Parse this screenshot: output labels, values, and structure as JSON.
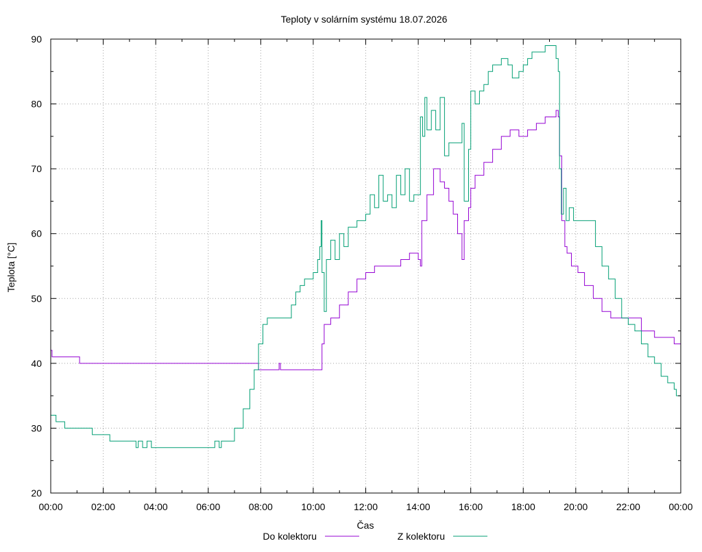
{
  "chart_data": {
    "type": "line",
    "title": "Teploty v solárním systému 18.07.2026",
    "xlabel": "Čas",
    "ylabel": "Teplota [°C]",
    "xlim": [
      "00:00",
      "24:00"
    ],
    "ylim": [
      20,
      90
    ],
    "x_ticks": [
      "00:00",
      "02:00",
      "04:00",
      "06:00",
      "08:00",
      "10:00",
      "12:00",
      "14:00",
      "16:00",
      "18:00",
      "20:00",
      "22:00",
      "00:00"
    ],
    "y_ticks": [
      20,
      30,
      40,
      50,
      60,
      70,
      80,
      90
    ],
    "grid": true,
    "legend_position": "bottom-center",
    "series": [
      {
        "name": "Do kolektoru",
        "color": "#9400d3",
        "points": [
          [
            "00:00",
            42
          ],
          [
            "00:03",
            41
          ],
          [
            "01:00",
            41
          ],
          [
            "01:06",
            40
          ],
          [
            "07:50",
            40
          ],
          [
            "07:55",
            39
          ],
          [
            "08:40",
            39
          ],
          [
            "08:42",
            40
          ],
          [
            "08:45",
            39
          ],
          [
            "10:15",
            39
          ],
          [
            "10:20",
            43
          ],
          [
            "10:25",
            46
          ],
          [
            "10:40",
            47
          ],
          [
            "11:00",
            49
          ],
          [
            "11:20",
            51
          ],
          [
            "11:40",
            53
          ],
          [
            "12:00",
            54
          ],
          [
            "12:20",
            55
          ],
          [
            "13:00",
            55
          ],
          [
            "13:20",
            56
          ],
          [
            "13:40",
            57
          ],
          [
            "14:00",
            56
          ],
          [
            "14:05",
            55
          ],
          [
            "14:08",
            62
          ],
          [
            "14:20",
            66
          ],
          [
            "14:35",
            70
          ],
          [
            "14:45",
            70
          ],
          [
            "14:50",
            68
          ],
          [
            "15:00",
            67
          ],
          [
            "15:10",
            65
          ],
          [
            "15:20",
            63
          ],
          [
            "15:30",
            60
          ],
          [
            "15:40",
            56
          ],
          [
            "15:45",
            62
          ],
          [
            "15:55",
            64
          ],
          [
            "16:00",
            67
          ],
          [
            "16:10",
            69
          ],
          [
            "16:30",
            71
          ],
          [
            "16:50",
            73
          ],
          [
            "17:10",
            75
          ],
          [
            "17:30",
            76
          ],
          [
            "17:50",
            75
          ],
          [
            "18:10",
            76
          ],
          [
            "18:30",
            77
          ],
          [
            "18:50",
            78
          ],
          [
            "19:15",
            79
          ],
          [
            "19:20",
            78
          ],
          [
            "19:23",
            72
          ],
          [
            "19:28",
            62
          ],
          [
            "19:35",
            58
          ],
          [
            "19:40",
            57
          ],
          [
            "19:50",
            55
          ],
          [
            "20:05",
            54
          ],
          [
            "20:20",
            52
          ],
          [
            "20:40",
            50
          ],
          [
            "21:00",
            48
          ],
          [
            "21:20",
            47
          ],
          [
            "22:00",
            47
          ],
          [
            "22:30",
            45
          ],
          [
            "23:00",
            44
          ],
          [
            "23:40",
            44
          ],
          [
            "23:45",
            43
          ],
          [
            "24:00",
            43
          ]
        ]
      },
      {
        "name": "Z kolektoru",
        "color": "#009e73",
        "points": [
          [
            "00:00",
            32
          ],
          [
            "00:10",
            32
          ],
          [
            "00:12",
            31
          ],
          [
            "00:30",
            31
          ],
          [
            "00:32",
            30
          ],
          [
            "01:30",
            30
          ],
          [
            "01:35",
            29
          ],
          [
            "02:10",
            29
          ],
          [
            "02:15",
            28
          ],
          [
            "03:10",
            28
          ],
          [
            "03:15",
            27
          ],
          [
            "03:20",
            28
          ],
          [
            "03:30",
            27
          ],
          [
            "03:40",
            28
          ],
          [
            "03:50",
            27
          ],
          [
            "04:00",
            27
          ],
          [
            "06:10",
            27
          ],
          [
            "06:15",
            28
          ],
          [
            "06:25",
            27
          ],
          [
            "06:30",
            28
          ],
          [
            "06:45",
            28
          ],
          [
            "07:00",
            30
          ],
          [
            "07:20",
            33
          ],
          [
            "07:35",
            36
          ],
          [
            "07:45",
            39
          ],
          [
            "07:55",
            43
          ],
          [
            "08:05",
            46
          ],
          [
            "08:15",
            47
          ],
          [
            "09:00",
            47
          ],
          [
            "09:10",
            49
          ],
          [
            "09:20",
            51
          ],
          [
            "09:30",
            52
          ],
          [
            "09:40",
            53
          ],
          [
            "09:50",
            53
          ],
          [
            "10:00",
            54
          ],
          [
            "10:10",
            56
          ],
          [
            "10:15",
            58
          ],
          [
            "10:18",
            62
          ],
          [
            "10:20",
            54
          ],
          [
            "10:25",
            48
          ],
          [
            "10:30",
            56
          ],
          [
            "10:40",
            59
          ],
          [
            "10:50",
            56
          ],
          [
            "11:00",
            60
          ],
          [
            "11:10",
            58
          ],
          [
            "11:20",
            61
          ],
          [
            "11:40",
            62
          ],
          [
            "12:00",
            63
          ],
          [
            "12:10",
            66
          ],
          [
            "12:20",
            64
          ],
          [
            "12:30",
            69
          ],
          [
            "12:40",
            65
          ],
          [
            "12:50",
            66
          ],
          [
            "13:00",
            64
          ],
          [
            "13:10",
            69
          ],
          [
            "13:20",
            66
          ],
          [
            "13:30",
            70
          ],
          [
            "13:40",
            65
          ],
          [
            "13:50",
            66
          ],
          [
            "14:00",
            66
          ],
          [
            "14:05",
            78
          ],
          [
            "14:10",
            75
          ],
          [
            "14:15",
            81
          ],
          [
            "14:20",
            76
          ],
          [
            "14:30",
            79
          ],
          [
            "14:40",
            76
          ],
          [
            "14:50",
            81
          ],
          [
            "15:00",
            72
          ],
          [
            "15:10",
            74
          ],
          [
            "15:30",
            74
          ],
          [
            "15:40",
            77
          ],
          [
            "15:45",
            65
          ],
          [
            "15:55",
            73
          ],
          [
            "16:00",
            82
          ],
          [
            "16:10",
            80
          ],
          [
            "16:20",
            82
          ],
          [
            "16:30",
            83
          ],
          [
            "16:40",
            85
          ],
          [
            "16:50",
            86
          ],
          [
            "17:00",
            86
          ],
          [
            "17:10",
            87
          ],
          [
            "17:25",
            86
          ],
          [
            "17:35",
            84
          ],
          [
            "17:50",
            85
          ],
          [
            "18:00",
            86
          ],
          [
            "18:10",
            87
          ],
          [
            "18:20",
            88
          ],
          [
            "18:40",
            88
          ],
          [
            "18:50",
            89
          ],
          [
            "19:10",
            89
          ],
          [
            "19:15",
            87
          ],
          [
            "19:20",
            85
          ],
          [
            "19:23",
            70
          ],
          [
            "19:27",
            63
          ],
          [
            "19:32",
            67
          ],
          [
            "19:38",
            62
          ],
          [
            "19:45",
            64
          ],
          [
            "19:55",
            62
          ],
          [
            "20:05",
            62
          ],
          [
            "20:30",
            62
          ],
          [
            "20:45",
            58
          ],
          [
            "21:00",
            55
          ],
          [
            "21:15",
            53
          ],
          [
            "21:30",
            50
          ],
          [
            "21:45",
            47
          ],
          [
            "22:00",
            46
          ],
          [
            "22:15",
            45
          ],
          [
            "22:30",
            43
          ],
          [
            "22:45",
            41
          ],
          [
            "23:00",
            40
          ],
          [
            "23:15",
            38
          ],
          [
            "23:30",
            37
          ],
          [
            "23:45",
            36
          ],
          [
            "23:50",
            35
          ],
          [
            "24:00",
            35
          ]
        ]
      }
    ]
  }
}
